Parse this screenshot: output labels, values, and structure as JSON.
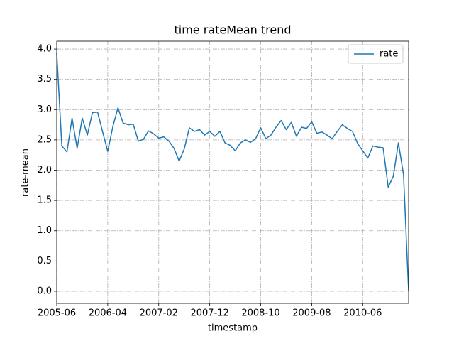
{
  "chart_data": {
    "type": "line",
    "title": "time rateMean trend",
    "x_label": "timestamp",
    "y_label": "rate-mean",
    "x": [
      "2005-06",
      "2005-07",
      "2005-08",
      "2005-09",
      "2005-10",
      "2005-11",
      "2005-12",
      "2006-01",
      "2006-02",
      "2006-03",
      "2006-04",
      "2006-05",
      "2006-06",
      "2006-07",
      "2006-08",
      "2006-09",
      "2006-10",
      "2006-11",
      "2006-12",
      "2007-01",
      "2007-02",
      "2007-03",
      "2007-04",
      "2007-05",
      "2007-06",
      "2007-07",
      "2007-08",
      "2007-09",
      "2007-10",
      "2007-11",
      "2007-12",
      "2008-01",
      "2008-02",
      "2008-03",
      "2008-04",
      "2008-05",
      "2008-06",
      "2008-07",
      "2008-08",
      "2008-09",
      "2008-10",
      "2008-11",
      "2008-12",
      "2009-01",
      "2009-02",
      "2009-03",
      "2009-04",
      "2009-05",
      "2009-06",
      "2009-07",
      "2009-08",
      "2009-09",
      "2009-10",
      "2009-11",
      "2009-12",
      "2010-01",
      "2010-02",
      "2010-03",
      "2010-04",
      "2010-05",
      "2010-06",
      "2010-07",
      "2010-08",
      "2010-09",
      "2010-10",
      "2010-11",
      "2010-12",
      "2011-01",
      "2011-02",
      "2011-03"
    ],
    "series": [
      {
        "name": "rate",
        "color": "#1f77b4",
        "values": [
          3.93,
          2.4,
          2.3,
          2.86,
          2.36,
          2.86,
          2.58,
          2.95,
          2.96,
          2.63,
          2.31,
          2.72,
          3.03,
          2.78,
          2.75,
          2.76,
          2.48,
          2.51,
          2.65,
          2.6,
          2.53,
          2.55,
          2.48,
          2.36,
          2.15,
          2.35,
          2.7,
          2.64,
          2.67,
          2.58,
          2.64,
          2.56,
          2.64,
          2.45,
          2.41,
          2.32,
          2.45,
          2.5,
          2.46,
          2.52,
          2.7,
          2.52,
          2.58,
          2.71,
          2.82,
          2.67,
          2.79,
          2.56,
          2.71,
          2.69,
          2.8,
          2.61,
          2.63,
          2.58,
          2.52,
          2.64,
          2.75,
          2.69,
          2.64,
          2.44,
          2.32,
          2.2,
          2.4,
          2.38,
          2.37,
          1.72,
          1.9,
          2.45,
          1.93,
          0.0
        ]
      }
    ],
    "xlim": [
      "2005-06",
      "2011-03"
    ],
    "xticks": [
      "2005-06",
      "2006-04",
      "2007-02",
      "2007-12",
      "2008-10",
      "2009-08",
      "2010-06"
    ],
    "ylim": [
      -0.2,
      4.13
    ],
    "yticks": [
      {
        "value": 0,
        "label": "0.0"
      },
      0.5,
      {
        "value": 1,
        "label": "1.0"
      },
      1.5,
      {
        "value": 2,
        "label": "2.0"
      },
      2.5,
      {
        "value": 3,
        "label": "3.0"
      },
      3.5,
      {
        "value": 4,
        "label": "4.0"
      }
    ],
    "grid": true,
    "legend": "upper right"
  }
}
